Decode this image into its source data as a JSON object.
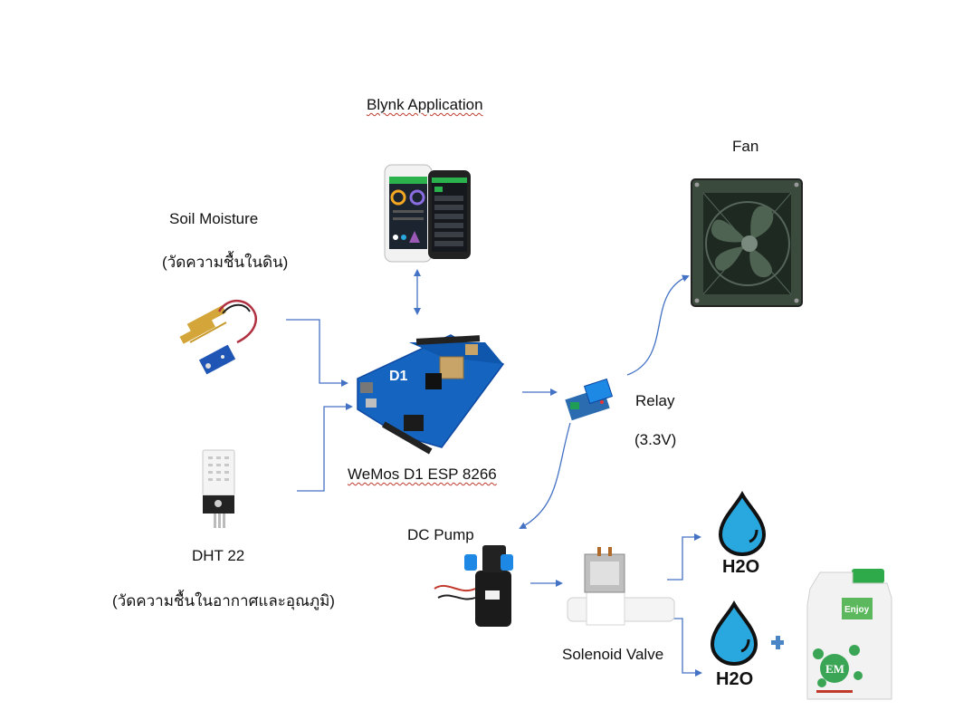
{
  "labels": {
    "blynk": "Blynk Application",
    "fan": "Fan",
    "soil_title": "Soil Moisture",
    "soil_thai": "(วัดความชื้นในดิน)",
    "relay_title": "Relay",
    "relay_voltage": "(3.3V)",
    "wemos": "WeMos D1 ESP 8266",
    "dht_title": "DHT 22",
    "dht_thai": "(วัดความชื้นในอากาศและอุณภูมิ)",
    "pump": "DC Pump",
    "valve": "Solenoid Valve"
  },
  "board": {
    "silk": "D1"
  },
  "water": {
    "formula_top": "H2O",
    "formula_bottom": "H2O"
  },
  "em_bottle": {
    "brand": "EM",
    "tag": "Enjoy"
  },
  "colors": {
    "arrow": "#4472c4",
    "board": "#1565c0",
    "water": "#29a8e0",
    "relay": "#2b6cb0",
    "fan_body": "#3a4a3c"
  },
  "icons": [
    "blynk-phone-icon",
    "fan-icon",
    "soil-sensor-icon",
    "wemos-board-icon",
    "relay-module-icon",
    "dht22-sensor-icon",
    "dc-pump-icon",
    "solenoid-valve-icon",
    "water-drop-icon",
    "plus-icon",
    "em-bottle-icon"
  ]
}
